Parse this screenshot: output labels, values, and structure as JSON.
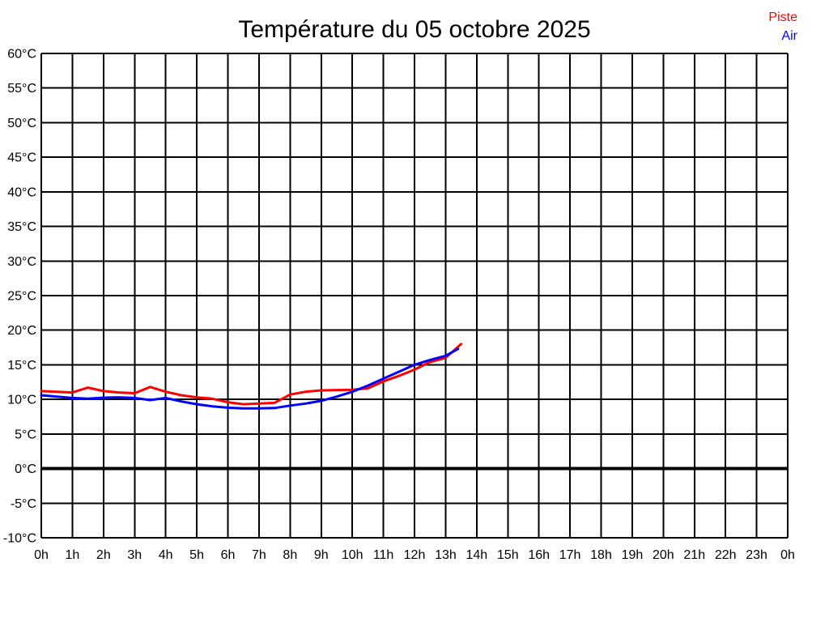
{
  "header": {
    "title": "Température du 05 octobre 2025"
  },
  "legend": {
    "items": [
      {
        "label": "Piste",
        "color": "#ff0000"
      },
      {
        "label": "Air",
        "color": "#0000ff"
      }
    ]
  },
  "chart_data": {
    "type": "line",
    "title": "Température du 05 octobre 2025",
    "xlabel": "",
    "ylabel": "",
    "x_unit": "hours",
    "y_unit": "°C",
    "x_range": [
      0,
      24
    ],
    "y_range": [
      -10,
      60
    ],
    "grid": true,
    "zero_line_value": 0,
    "legend_position": "top-right",
    "x_tick_values": [
      0,
      1,
      2,
      3,
      4,
      5,
      6,
      7,
      8,
      9,
      10,
      11,
      12,
      13,
      14,
      15,
      16,
      17,
      18,
      19,
      20,
      21,
      22,
      23,
      24
    ],
    "x_tick_labels": [
      "0h",
      "1h",
      "2h",
      "3h",
      "4h",
      "5h",
      "6h",
      "7h",
      "8h",
      "9h",
      "10h",
      "11h",
      "12h",
      "13h",
      "14h",
      "15h",
      "16h",
      "17h",
      "18h",
      "19h",
      "20h",
      "21h",
      "22h",
      "23h",
      "0h"
    ],
    "y_tick_values": [
      -10,
      -5,
      0,
      5,
      10,
      15,
      20,
      25,
      30,
      35,
      40,
      45,
      50,
      55,
      60
    ],
    "y_tick_labels": [
      "-10°C",
      "-5°C",
      "0°C",
      "5°C",
      "10°C",
      "15°C",
      "20°C",
      "25°C",
      "30°C",
      "35°C",
      "40°C",
      "45°C",
      "50°C",
      "55°C",
      "60°C"
    ],
    "series": [
      {
        "name": "Piste",
        "color": "#ff0000",
        "x": [
          0,
          0.5,
          1,
          1.5,
          2,
          2.5,
          3,
          3.5,
          4,
          4.5,
          5,
          5.5,
          6,
          6.5,
          7,
          7.5,
          8,
          8.5,
          9,
          9.5,
          10,
          10.5,
          11,
          11.5,
          12,
          12.5,
          13,
          13.5
        ],
        "values": [
          11.2,
          11.1,
          11.0,
          11.7,
          11.2,
          11.0,
          10.9,
          11.8,
          11.1,
          10.6,
          10.3,
          10.1,
          9.6,
          9.3,
          9.4,
          9.5,
          10.7,
          11.1,
          11.3,
          11.35,
          11.4,
          11.6,
          12.6,
          13.4,
          14.3,
          15.4,
          16.0,
          18.0
        ]
      },
      {
        "name": "Air",
        "color": "#0000ff",
        "x": [
          0,
          0.5,
          1,
          1.5,
          2,
          2.5,
          3,
          3.5,
          4,
          4.5,
          5,
          5.5,
          6,
          6.5,
          7,
          7.5,
          8,
          8.5,
          9,
          9.5,
          10,
          10.5,
          11,
          11.5,
          12,
          12.5,
          13,
          13.4
        ],
        "values": [
          10.6,
          10.4,
          10.2,
          10.1,
          10.25,
          10.3,
          10.2,
          9.9,
          10.2,
          9.7,
          9.3,
          9.0,
          8.8,
          8.7,
          8.7,
          8.75,
          9.1,
          9.4,
          9.8,
          10.4,
          11.1,
          12.0,
          13.0,
          14.0,
          15.0,
          15.7,
          16.3,
          17.3
        ]
      }
    ]
  }
}
